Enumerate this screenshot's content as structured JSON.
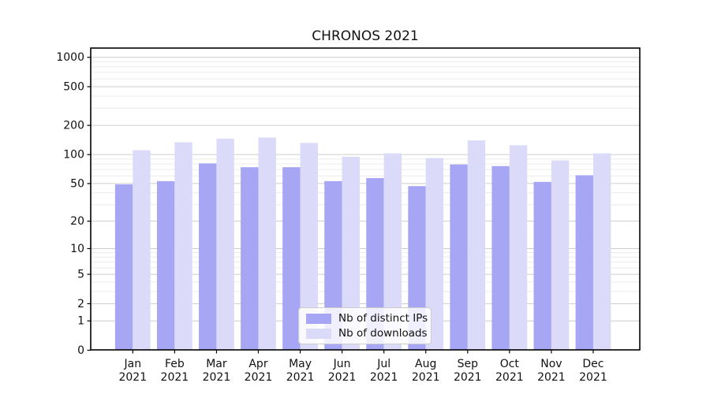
{
  "title": "CHRONOS 2021",
  "chart_data": {
    "type": "bar",
    "title": "CHRONOS 2021",
    "categories": [
      "Jan 2021",
      "Feb 2021",
      "Mar 2021",
      "Apr 2021",
      "May 2021",
      "Jun 2021",
      "Jul 2021",
      "Aug 2021",
      "Sep 2021",
      "Oct 2021",
      "Nov 2021",
      "Dec 2021"
    ],
    "series": [
      {
        "name": "Nb of distinct IPs",
        "color": "#a6a6f4",
        "values": [
          49,
          53,
          81,
          74,
          74,
          53,
          57,
          47,
          79,
          76,
          52,
          61
        ]
      },
      {
        "name": "Nb of downloads",
        "color": "#dbdbf9",
        "values": [
          111,
          134,
          146,
          150,
          132,
          95,
          103,
          92,
          140,
          125,
          87,
          103
        ]
      }
    ],
    "xlabel": "",
    "ylabel": "",
    "yscale": "log1p",
    "ylim": [
      0,
      1250
    ],
    "yticks": [
      0,
      1,
      2,
      5,
      10,
      20,
      50,
      100,
      200,
      500,
      1000
    ],
    "grid": "on",
    "legend_position": "lower center",
    "colors": {
      "major_grid": "#cccccc",
      "minor_grid": "#ececec",
      "spine": "#000000",
      "text": "#111111"
    }
  }
}
